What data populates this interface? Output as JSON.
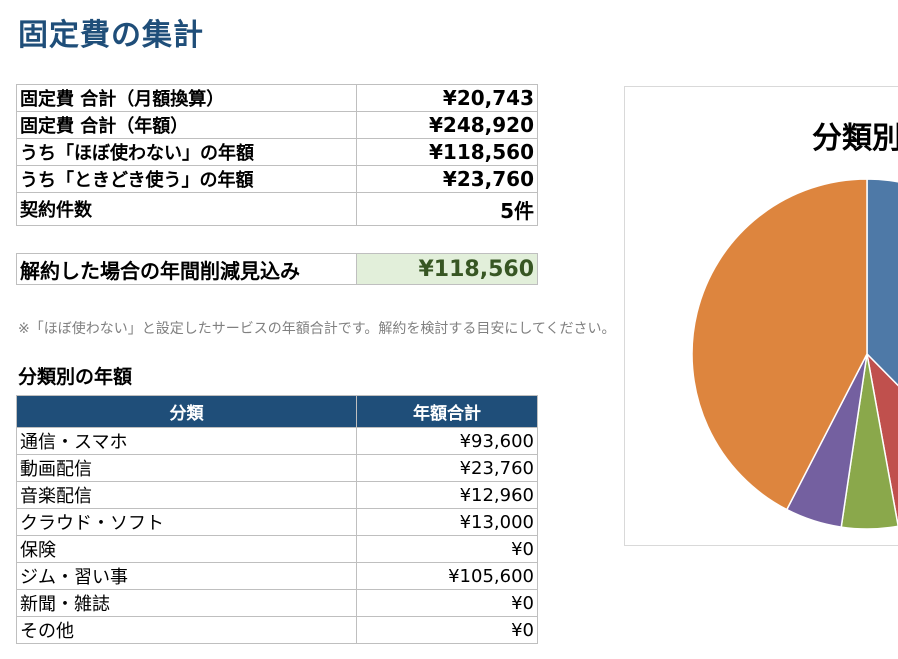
{
  "page": {
    "title": "固定費の集計"
  },
  "summary": [
    {
      "label": "固定費 合計（月額換算）",
      "value": "¥20,743"
    },
    {
      "label": "固定費 合計（年額）",
      "value": "¥248,920"
    },
    {
      "label": "うち「ほぼ使わない」の年額",
      "value": "¥118,560"
    },
    {
      "label": "うち「ときどき使う」の年額",
      "value": "¥23,760"
    },
    {
      "label": "契約件数",
      "value": "5件"
    }
  ],
  "saving": {
    "label": "解約した場合の年間削減見込み",
    "value": "¥118,560",
    "color": "#375623"
  },
  "note": "※「ほぼ使わない」と設定したサービスの年額合計です。解約を検討する目安にしてください。",
  "category_section": {
    "heading": "分類別の年額",
    "columns": [
      "分類",
      "年額合計"
    ],
    "rows": [
      {
        "name": "通信・スマホ",
        "amount": "¥93,600"
      },
      {
        "name": "動画配信",
        "amount": "¥23,760"
      },
      {
        "name": "音楽配信",
        "amount": "¥12,960"
      },
      {
        "name": "クラウド・ソフト",
        "amount": "¥13,000"
      },
      {
        "name": "保険",
        "amount": "¥0"
      },
      {
        "name": "ジム・習い事",
        "amount": "¥105,600"
      },
      {
        "name": "新聞・雑誌",
        "amount": "¥0"
      },
      {
        "name": "その他",
        "amount": "¥0"
      }
    ]
  },
  "chart_data": {
    "type": "pie",
    "title": "分類別",
    "categories": [
      "通信・スマホ",
      "動画配信",
      "音楽配信",
      "クラウド・ソフト",
      "保険",
      "ジム・習い事",
      "新聞・雑誌",
      "その他"
    ],
    "values": [
      93600,
      23760,
      12960,
      13000,
      0,
      105600,
      0,
      0
    ],
    "colors": [
      "#4e79a7",
      "#c0504d",
      "#8aa84b",
      "#7460a0",
      "#4bacc6",
      "#dd853e",
      "#a6a6a6",
      "#2f5597"
    ]
  },
  "theme": {
    "header_bg": "#1f4e79",
    "title_color": "#1f4e79",
    "saving_bg": "#e2efda"
  }
}
